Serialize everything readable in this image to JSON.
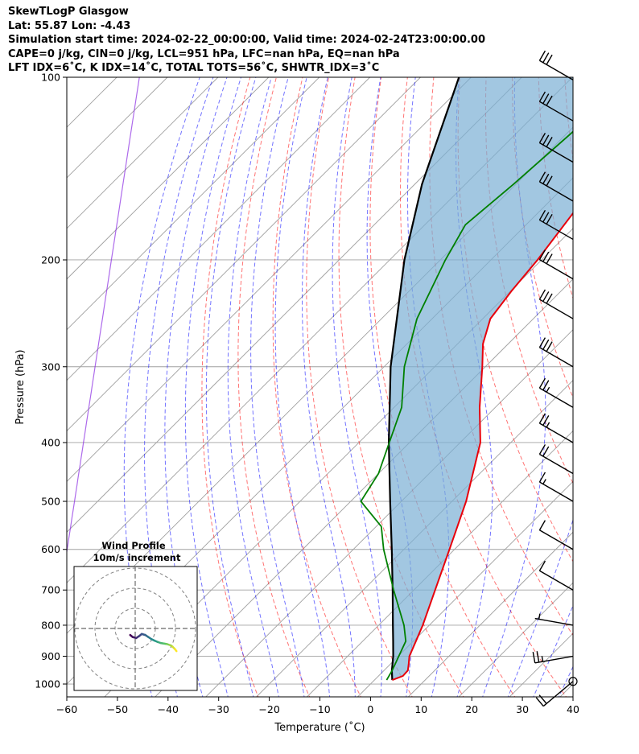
{
  "header": {
    "line1": "SkewTLogP Glasgow",
    "line2": "Lat: 55.87   Lon: -4.43",
    "line3": "Simulation start time: 2024-02-22_00:00:00, Valid time: 2024-02-24T23:00:00.00",
    "line4": "CAPE=0 j/kg, CIN=0 j/kg, LCL=951 hPa, LFC=nan hPa, EQ=nan hPa",
    "line5": "LFT IDX=6˚C, K IDX=14˚C, TOTAL TOTS=56˚C, SHWTR_IDX=3˚C"
  },
  "colors": {
    "temperature": "#e8000b",
    "dewpoint": "#008000",
    "parcel": "#000000",
    "fill": "#7bafd4",
    "dry_adiabat": "#ff0000",
    "moist_adiabat": "#0000ff",
    "isotherm_grid": "#a0a0a0"
  },
  "chart_data": [
    {
      "type": "line",
      "title": "",
      "xlabel": "Temperature (˚C)",
      "ylabel": "Pressure (hPa)",
      "xlim": [
        -60,
        40
      ],
      "ylim": [
        1050,
        100
      ],
      "yscale": "log",
      "skew": true,
      "xticks": [
        "−60",
        "−50",
        "−40",
        "−30",
        "−20",
        "−10",
        "0",
        "10",
        "20",
        "30",
        "40"
      ],
      "yticks": [
        "100",
        "200",
        "300",
        "400",
        "500",
        "600",
        "700",
        "800",
        "900",
        "1000"
      ],
      "grid": true,
      "series": [
        {
          "role": "temperature",
          "points": [
            [
              985,
              3.5
            ],
            [
              970,
              4.8
            ],
            [
              950,
              4.7
            ],
            [
              925,
              3.5
            ],
            [
              900,
              2.2
            ],
            [
              850,
              0.5
            ],
            [
              800,
              -1.3
            ],
            [
              700,
              -5.8
            ],
            [
              600,
              -11
            ],
            [
              500,
              -17.2
            ],
            [
              400,
              -26
            ],
            [
              350,
              -33.1
            ],
            [
              300,
              -40.6
            ],
            [
              275,
              -45
            ],
            [
              250,
              -48.5
            ],
            [
              225,
              -49.8
            ],
            [
              200,
              -50.8
            ],
            [
              150,
              -54.4
            ],
            [
              125,
              -57
            ],
            [
              100,
              -59.7
            ]
          ]
        },
        {
          "role": "dewpoint",
          "points": [
            [
              985,
              2.4
            ],
            [
              950,
              1.6
            ],
            [
              900,
              0.1
            ],
            [
              850,
              -1.5
            ],
            [
              800,
              -5
            ],
            [
              700,
              -14
            ],
            [
              600,
              -24
            ],
            [
              550,
              -29
            ],
            [
              500,
              -38
            ],
            [
              450,
              -40
            ],
            [
              400,
              -44
            ],
            [
              350,
              -48.5
            ],
            [
              300,
              -56
            ],
            [
              250,
              -63
            ],
            [
              200,
              -69
            ],
            [
              175,
              -72
            ],
            [
              150,
              -70.5
            ],
            [
              100,
              -67.7
            ]
          ]
        },
        {
          "role": "parcel",
          "points": [
            [
              985,
              3.5
            ],
            [
              951,
              1.6
            ],
            [
              900,
              -1
            ],
            [
              850,
              -4
            ],
            [
              800,
              -7.2
            ],
            [
              700,
              -14.2
            ],
            [
              600,
              -22.4
            ],
            [
              500,
              -32.2
            ],
            [
              400,
              -44.1
            ],
            [
              300,
              -58.7
            ],
            [
              200,
              -77.1
            ],
            [
              150,
              -88.6
            ],
            [
              100,
              -102.4
            ]
          ]
        }
      ],
      "wind_barbs": [
        {
          "p": 990,
          "dir": 230,
          "kt": 20
        },
        {
          "p": 900,
          "dir": 260,
          "kt": 25
        },
        {
          "p": 800,
          "dir": 280,
          "kt": 5
        },
        {
          "p": 700,
          "dir": 300,
          "kt": 10
        },
        {
          "p": 600,
          "dir": 300,
          "kt": 10
        },
        {
          "p": 500,
          "dir": 300,
          "kt": 15
        },
        {
          "p": 450,
          "dir": 300,
          "kt": 20
        },
        {
          "p": 400,
          "dir": 300,
          "kt": 25
        },
        {
          "p": 350,
          "dir": 300,
          "kt": 25
        },
        {
          "p": 300,
          "dir": 300,
          "kt": 30
        },
        {
          "p": 250,
          "dir": 300,
          "kt": 30
        },
        {
          "p": 215,
          "dir": 300,
          "kt": 30
        },
        {
          "p": 185,
          "dir": 300,
          "kt": 30
        },
        {
          "p": 160,
          "dir": 300,
          "kt": 30
        },
        {
          "p": 138,
          "dir": 300,
          "kt": 30
        },
        {
          "p": 118,
          "dir": 300,
          "kt": 30
        },
        {
          "p": 101,
          "dir": 300,
          "kt": 30
        }
      ]
    },
    {
      "type": "scatter",
      "title": "Wind Profile",
      "subtitle": "10m/s increment",
      "rings": 3,
      "x": [
        -1,
        -0.5,
        0.2,
        0.8,
        1.3,
        2.0,
        2.6,
        3.2,
        3.8,
        4.5,
        5.1,
        5.7,
        6.3,
        6.9,
        7.4,
        7.9,
        8.2
      ],
      "y": [
        -1.3,
        -1.7,
        -1.9,
        -1.5,
        -1.1,
        -1.3,
        -1.7,
        -2.1,
        -2.4,
        -2.7,
        -2.9,
        -3.0,
        -3.1,
        -3.3,
        -3.6,
        -4.1,
        -4.5
      ]
    }
  ]
}
